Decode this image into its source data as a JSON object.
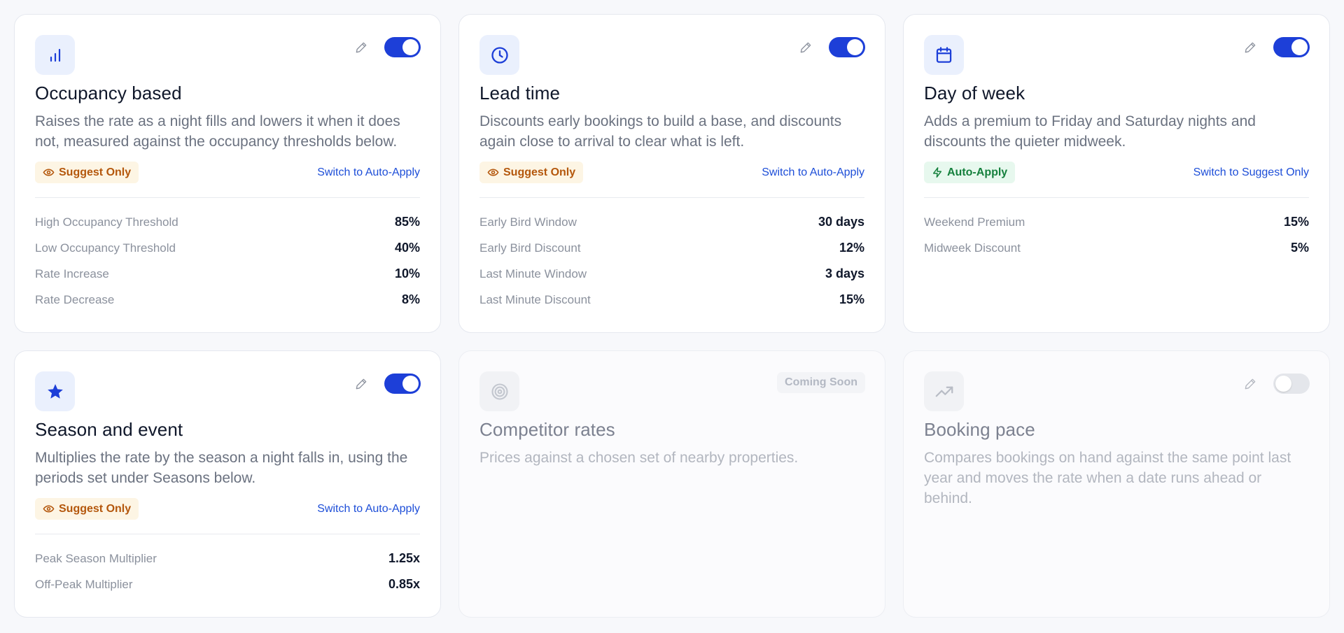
{
  "cards": [
    {
      "id": "occupancy",
      "icon": "bar-chart-icon",
      "title": "Occupancy based",
      "description": "Raises the rate as a night fills and lowers it when it does not, measured against the occupancy thresholds below.",
      "enabled": true,
      "mode_badge": "Suggest Only",
      "switch_link": "Switch to Auto-Apply",
      "params": [
        {
          "label": "High Occupancy Threshold",
          "value": "85%"
        },
        {
          "label": "Low Occupancy Threshold",
          "value": "40%"
        },
        {
          "label": "Rate Increase",
          "value": "10%"
        },
        {
          "label": "Rate Decrease",
          "value": "8%"
        }
      ]
    },
    {
      "id": "lead-time",
      "icon": "clock-icon",
      "title": "Lead time",
      "description": "Discounts early bookings to build a base, and discounts again close to arrival to clear what is left.",
      "enabled": true,
      "mode_badge": "Suggest Only",
      "switch_link": "Switch to Auto-Apply",
      "params": [
        {
          "label": "Early Bird Window",
          "value": "30 days"
        },
        {
          "label": "Early Bird Discount",
          "value": "12%"
        },
        {
          "label": "Last Minute Window",
          "value": "3 days"
        },
        {
          "label": "Last Minute Discount",
          "value": "15%"
        }
      ]
    },
    {
      "id": "day-of-week",
      "icon": "calendar-icon",
      "title": "Day of week",
      "description": "Adds a premium to Friday and Saturday nights and discounts the quieter midweek.",
      "enabled": true,
      "mode_badge": "Auto-Apply",
      "switch_link": "Switch to Suggest Only",
      "params": [
        {
          "label": "Weekend Premium",
          "value": "15%"
        },
        {
          "label": "Midweek Discount",
          "value": "5%"
        }
      ]
    },
    {
      "id": "season-event",
      "icon": "star-icon",
      "title": "Season and event",
      "description": "Multiplies the rate by the season a night falls in, using the periods set under Seasons below.",
      "enabled": true,
      "mode_badge": "Suggest Only",
      "switch_link": "Switch to Auto-Apply",
      "params": [
        {
          "label": "Peak Season Multiplier",
          "value": "1.25x"
        },
        {
          "label": "Off-Peak Multiplier",
          "value": "0.85x"
        }
      ]
    },
    {
      "id": "competitor",
      "icon": "target-icon",
      "title": "Competitor rates",
      "description": "Prices against a chosen set of nearby properties.",
      "status": "Coming Soon"
    },
    {
      "id": "booking-pace",
      "icon": "trending-up-icon",
      "title": "Booking pace",
      "description": "Compares bookings on hand against the same point last year and moves the rate when a date runs ahead or behind.",
      "enabled": false
    }
  ],
  "colors": {
    "accent": "#1d3fd8",
    "suggest_badge_text": "#b4570c",
    "suggest_badge_bg": "#fdf5e4",
    "auto_badge_text": "#15803d",
    "auto_badge_bg": "#e7f8ee",
    "link": "#1d4ed8"
  }
}
